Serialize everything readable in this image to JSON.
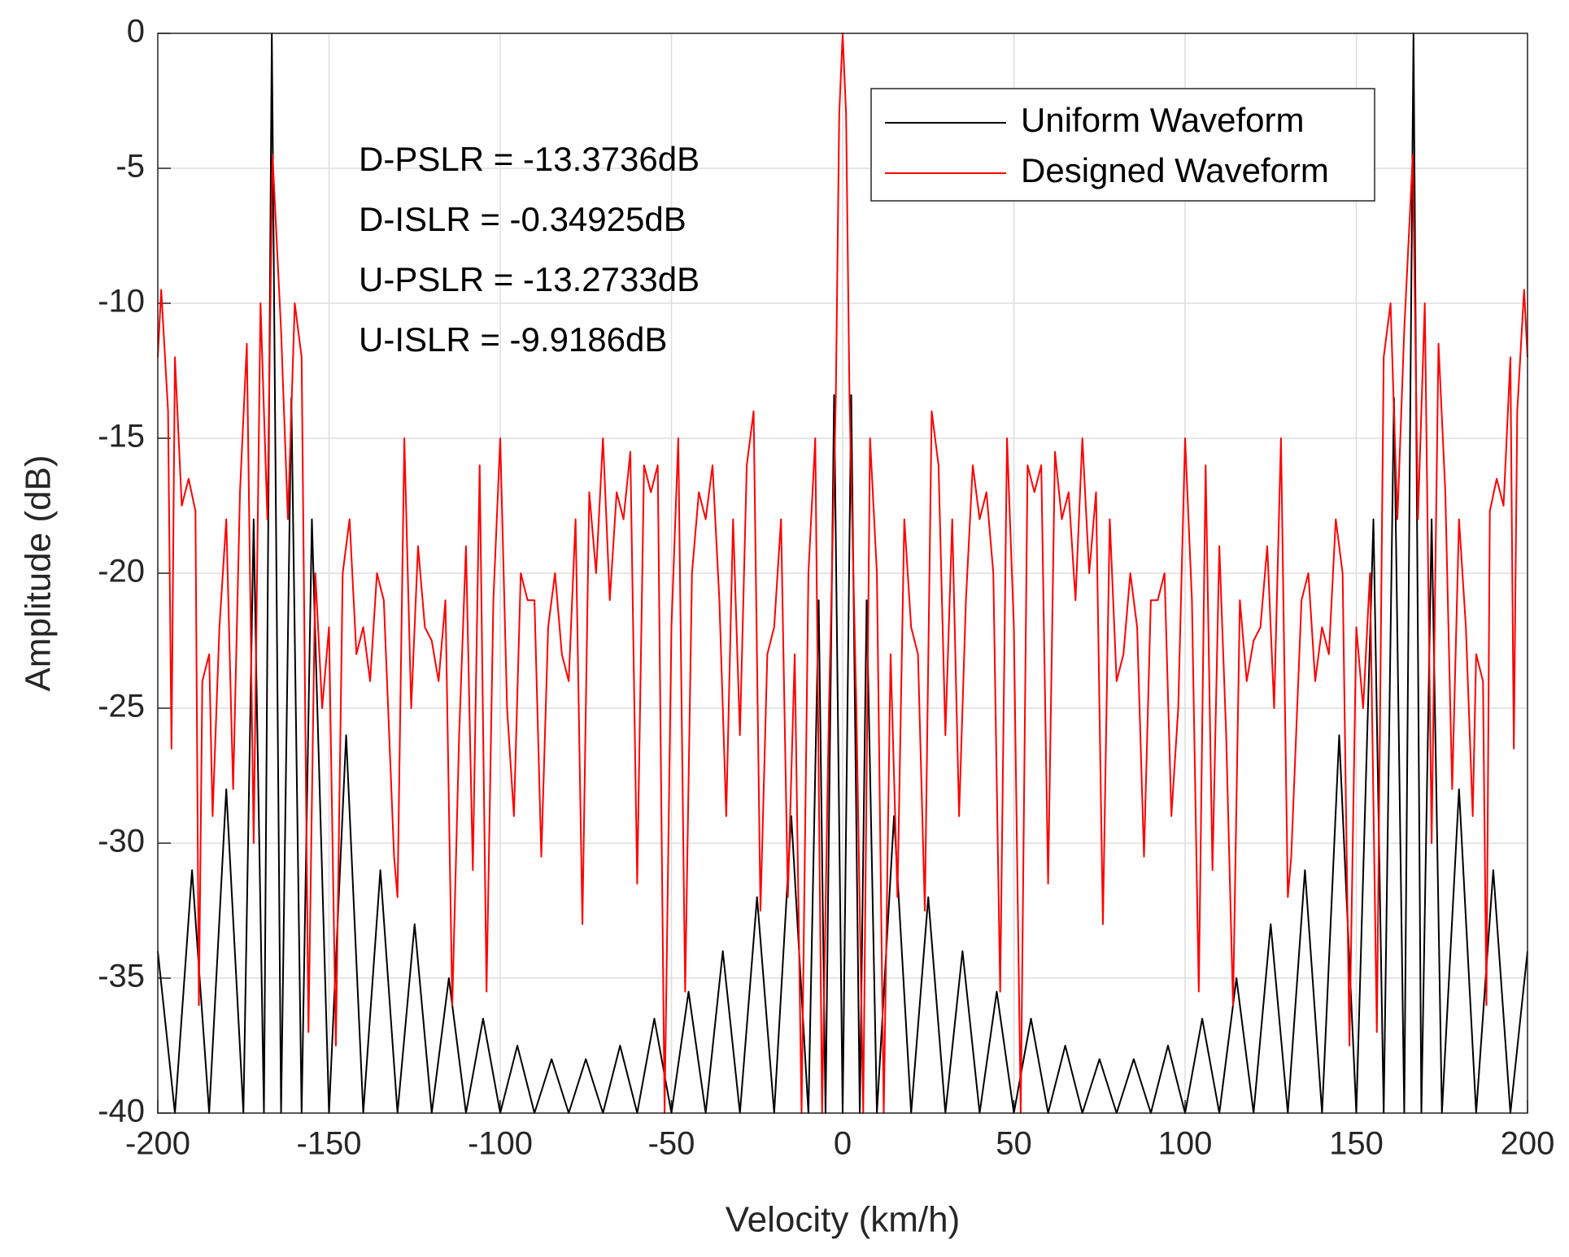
{
  "chart_data": {
    "type": "line",
    "xlabel": "Velocity (km/h)",
    "ylabel": "Amplitude (dB)",
    "annotations": [
      "D-PSLR = -13.3736dB",
      "D-ISLR = -0.34925dB",
      "U-PSLR = -13.2733dB",
      "U-ISLR = -9.9186dB"
    ],
    "xlim": [
      -200,
      200
    ],
    "ylim": [
      -40,
      0
    ],
    "xticks": [
      -200,
      -150,
      -100,
      -50,
      0,
      50,
      100,
      150,
      200
    ],
    "yticks": [
      -40,
      -35,
      -30,
      -25,
      -20,
      -15,
      -10,
      -5,
      0
    ],
    "grid": true,
    "legend": "upper right",
    "series": [
      {
        "name": "Uniform Waveform",
        "color": "#000000",
        "x": [
          -200,
          -195,
          -190,
          -185,
          -180,
          -175,
          -172,
          -169,
          -166.7,
          -164,
          -161,
          -158,
          -155,
          -150,
          -145,
          -140,
          -135,
          -130,
          -125,
          -120,
          -115,
          -110,
          -105,
          -100,
          -95,
          -90,
          -85,
          -80,
          -75,
          -70,
          -65,
          -60,
          -55,
          -50,
          -45,
          -40,
          -35,
          -30,
          -25,
          -20,
          -15,
          -10,
          -7,
          -5,
          -2.5,
          0,
          2.5,
          5,
          7,
          10,
          15,
          20,
          25,
          30,
          35,
          40,
          45,
          50,
          55,
          60,
          65,
          70,
          75,
          80,
          85,
          90,
          95,
          100,
          105,
          110,
          115,
          120,
          125,
          130,
          135,
          140,
          145,
          150,
          155,
          158,
          161,
          164,
          166.7,
          169,
          172,
          175,
          180,
          185,
          190,
          195,
          200
        ],
        "values": [
          -34,
          -40,
          -31,
          -40,
          -28,
          -40,
          -18,
          -40,
          0,
          -40,
          -13.5,
          -40,
          -18,
          -40,
          -26,
          -40,
          -31,
          -40,
          -33,
          -40,
          -35,
          -40,
          -36.5,
          -40,
          -37.5,
          -40,
          -38,
          -40,
          -38,
          -40,
          -37.5,
          -40,
          -36.5,
          -40,
          -35.5,
          -40,
          -34,
          -40,
          -32,
          -40,
          -29,
          -40,
          -21,
          -40,
          -13.4,
          -40,
          -13.4,
          -40,
          -21,
          -40,
          -29,
          -40,
          -32,
          -40,
          -34,
          -40,
          -35.5,
          -40,
          -36.5,
          -40,
          -37.5,
          -40,
          -38,
          -40,
          -38,
          -40,
          -37.5,
          -40,
          -36.5,
          -40,
          -35,
          -40,
          -33,
          -40,
          -31,
          -40,
          -26,
          -40,
          -18,
          -40,
          -13.5,
          -40,
          0,
          -40,
          -18,
          -40,
          -28,
          -40,
          -31,
          -40,
          -34
        ]
      },
      {
        "name": "Designed Waveform",
        "color": "#ff0000",
        "x": [
          -200,
          -199,
          -197,
          -196,
          -195,
          -193,
          -191,
          -189,
          -188,
          -187,
          -185,
          -184,
          -182,
          -180,
          -178,
          -176,
          -174,
          -172,
          -170,
          -168,
          -166.5,
          -164,
          -162,
          -160,
          -158,
          -156,
          -154,
          -152,
          -150,
          -148,
          -146,
          -144,
          -142,
          -140,
          -138,
          -136,
          -134,
          -131,
          -130,
          -128,
          -126,
          -124,
          -122,
          -120,
          -118,
          -116,
          -114,
          -112,
          -110,
          -108,
          -106,
          -104,
          -102,
          -100,
          -98,
          -96,
          -94,
          -92,
          -90,
          -88,
          -86,
          -84,
          -82,
          -80,
          -78,
          -76,
          -74,
          -72,
          -70,
          -68,
          -66,
          -64,
          -62,
          -60,
          -58,
          -56,
          -54,
          -52,
          -50,
          -48,
          -46,
          -44,
          -42,
          -40,
          -38,
          -36,
          -34,
          -32,
          -30,
          -28,
          -26,
          -24,
          -22,
          -20,
          -18,
          -16,
          -14,
          -12,
          -10,
          -8,
          -6,
          -4,
          -2,
          -1,
          0,
          1,
          2,
          4,
          6,
          8,
          10,
          12,
          14,
          16,
          18,
          20,
          22,
          24,
          26,
          28,
          30,
          32,
          34,
          36,
          38,
          40,
          42,
          44,
          46,
          48,
          50,
          52,
          54,
          56,
          58,
          60,
          62,
          64,
          66,
          68,
          70,
          72,
          74,
          76,
          78,
          80,
          82,
          84,
          86,
          88,
          90,
          92,
          94,
          96,
          98,
          100,
          102,
          104,
          106,
          108,
          110,
          112,
          114,
          116,
          118,
          120,
          122,
          124,
          126,
          128,
          130,
          131,
          134,
          136,
          138,
          140,
          142,
          144,
          146,
          148,
          150,
          152,
          154,
          156,
          158,
          160,
          162,
          164,
          166.5,
          168,
          170,
          172,
          174,
          176,
          178,
          180,
          182,
          184,
          185,
          187,
          188,
          189,
          191,
          193,
          195,
          196,
          197,
          199,
          200
        ],
        "values": [
          -12,
          -9.5,
          -14,
          -26.5,
          -12,
          -17.5,
          -16.5,
          -17.7,
          -36,
          -24,
          -23,
          -29,
          -22,
          -18,
          -28,
          -17,
          -11.5,
          -30,
          -10,
          -18,
          -4.5,
          -11,
          -18,
          -10,
          -12,
          -37,
          -20,
          -25,
          -22,
          -37.5,
          -20,
          -18,
          -23,
          -22,
          -24,
          -20,
          -21,
          -30.5,
          -32,
          -15,
          -25,
          -19,
          -22,
          -22.5,
          -24,
          -21,
          -36,
          -26,
          -19,
          -31,
          -16,
          -35.5,
          -21,
          -15,
          -25,
          -29,
          -20,
          -21,
          -21,
          -30.5,
          -22,
          -20,
          -23,
          -24,
          -18,
          -33,
          -17,
          -20,
          -15,
          -21,
          -17,
          -18,
          -15.5,
          -31.5,
          -16,
          -17,
          -16,
          -40,
          -22,
          -15,
          -35.5,
          -20,
          -17,
          -18,
          -16,
          -21,
          -29,
          -18,
          -26,
          -16,
          -14,
          -32.5,
          -23,
          -22,
          -18,
          -32,
          -23,
          -40,
          -20,
          -15,
          -40,
          -25,
          -13.5,
          -3,
          0,
          -3,
          -13.5,
          -25,
          -40,
          -15,
          -20,
          -40,
          -23,
          -32,
          -18,
          -22,
          -23,
          -32.5,
          -14,
          -16,
          -26,
          -18,
          -29,
          -21,
          -16,
          -18,
          -17,
          -20,
          -35.5,
          -15,
          -22,
          -40,
          -16,
          -17,
          -16,
          -31.5,
          -15.5,
          -18,
          -17,
          -21,
          -15,
          -20,
          -17,
          -33,
          -18,
          -24,
          -23,
          -20,
          -22,
          -30.5,
          -21,
          -21,
          -20,
          -29,
          -25,
          -15,
          -21,
          -35.5,
          -16,
          -31,
          -19,
          -26,
          -36,
          -21,
          -24,
          -22.5,
          -22,
          -19,
          -25,
          -15,
          -32,
          -30.5,
          -21,
          -20,
          -24,
          -22,
          -23,
          -18,
          -20,
          -37.5,
          -22,
          -25,
          -20,
          -37,
          -12,
          -10,
          -18,
          -11,
          -4.5,
          -18,
          -10,
          -30,
          -11.5,
          -17,
          -28,
          -18,
          -22,
          -29,
          -23,
          -24,
          -36,
          -17.7,
          -16.5,
          -17.5,
          -12,
          -26.5,
          -14,
          -9.5,
          -12
        ]
      }
    ]
  }
}
